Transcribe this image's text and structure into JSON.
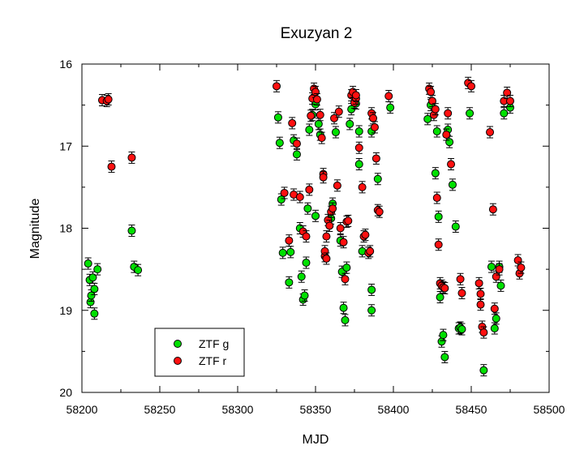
{
  "chart_data": {
    "type": "scatter",
    "title": "Exuzyan 2",
    "xlabel": "MJD",
    "ylabel": "Magnitude",
    "xlim": [
      58200,
      58500
    ],
    "ylim": [
      20,
      16
    ],
    "y_inverted": true,
    "x_ticks": [
      "58200",
      "58250",
      "58300",
      "58350",
      "58400",
      "58450",
      "58500"
    ],
    "y_ticks": [
      "16",
      "17",
      "18",
      "19",
      "20"
    ],
    "grid": false,
    "error_bars": true,
    "legend_position": "lower-left",
    "series": [
      {
        "name": "ZTF g",
        "color": "#00e000",
        "points": [
          [
            58204,
            18.43
          ],
          [
            58205,
            18.63
          ],
          [
            58205.5,
            18.9
          ],
          [
            58206,
            18.82
          ],
          [
            58207,
            18.6
          ],
          [
            58208,
            18.74
          ],
          [
            58208,
            19.04
          ],
          [
            58210,
            18.5
          ],
          [
            58232,
            18.03
          ],
          [
            58233.5,
            18.47
          ],
          [
            58236,
            18.51
          ],
          [
            58326,
            16.65
          ],
          [
            58327,
            16.96
          ],
          [
            58328,
            17.65
          ],
          [
            58329,
            18.3
          ],
          [
            58333,
            18.66
          ],
          [
            58334,
            18.29
          ],
          [
            58336,
            16.93
          ],
          [
            58338,
            17.1
          ],
          [
            58340,
            18.0
          ],
          [
            58341,
            18.59
          ],
          [
            58342,
            18.87
          ],
          [
            58343,
            18.82
          ],
          [
            58344,
            18.42
          ],
          [
            58345,
            17.76
          ],
          [
            58346,
            16.8
          ],
          [
            58348,
            16.62
          ],
          [
            58350,
            16.49
          ],
          [
            58350,
            17.85
          ],
          [
            58352,
            16.73
          ],
          [
            58353,
            16.86
          ],
          [
            58360,
            17.88
          ],
          [
            58361,
            17.7
          ],
          [
            58363,
            16.83
          ],
          [
            58366,
            18.15
          ],
          [
            58367,
            18.53
          ],
          [
            58368,
            18.97
          ],
          [
            58369,
            19.12
          ],
          [
            58370,
            18.48
          ],
          [
            58372,
            16.73
          ],
          [
            58373,
            16.55
          ],
          [
            58376,
            16.48
          ],
          [
            58378,
            17.22
          ],
          [
            58378,
            16.82
          ],
          [
            58380,
            18.28
          ],
          [
            58386,
            18.75
          ],
          [
            58386,
            19.0
          ],
          [
            58386,
            16.82
          ],
          [
            58390,
            17.4
          ],
          [
            58398,
            16.53
          ],
          [
            58422,
            16.67
          ],
          [
            58424,
            16.5
          ],
          [
            58427,
            17.33
          ],
          [
            58428,
            16.82
          ],
          [
            58429,
            17.86
          ],
          [
            58430,
            18.84
          ],
          [
            58431,
            19.38
          ],
          [
            58432,
            19.3
          ],
          [
            58433,
            19.57
          ],
          [
            58435,
            16.8
          ],
          [
            58436,
            16.95
          ],
          [
            58438,
            17.47
          ],
          [
            58440,
            17.98
          ],
          [
            58442,
            19.22
          ],
          [
            58443,
            19.21
          ],
          [
            58444,
            19.23
          ],
          [
            58449,
            16.6
          ],
          [
            58458,
            19.73
          ],
          [
            58463,
            18.47
          ],
          [
            58465,
            19.22
          ],
          [
            58466,
            19.1
          ],
          [
            58468,
            18.47
          ],
          [
            58469,
            18.7
          ],
          [
            58471,
            16.6
          ],
          [
            58475,
            16.53
          ]
        ]
      },
      {
        "name": "ZTF r",
        "color": "#ff1010",
        "points": [
          [
            58213,
            16.44
          ],
          [
            58216,
            16.45
          ],
          [
            58217,
            16.43
          ],
          [
            58219,
            17.25
          ],
          [
            58232,
            17.14
          ],
          [
            58325,
            16.27
          ],
          [
            58330,
            17.57
          ],
          [
            58333,
            18.15
          ],
          [
            58335,
            16.72
          ],
          [
            58336,
            17.59
          ],
          [
            58338,
            16.97
          ],
          [
            58340,
            17.62
          ],
          [
            58342,
            18.04
          ],
          [
            58344,
            18.1
          ],
          [
            58346,
            17.53
          ],
          [
            58347,
            16.63
          ],
          [
            58348,
            16.42
          ],
          [
            58349,
            16.3
          ],
          [
            58350,
            16.34
          ],
          [
            58351,
            16.43
          ],
          [
            58353,
            16.62
          ],
          [
            58354,
            16.9
          ],
          [
            58355,
            17.34
          ],
          [
            58355,
            17.38
          ],
          [
            58356,
            18.34
          ],
          [
            58356,
            18.28
          ],
          [
            58357,
            18.1
          ],
          [
            58357,
            18.37
          ],
          [
            58358,
            17.9
          ],
          [
            58359,
            17.97
          ],
          [
            58360,
            17.8
          ],
          [
            58361,
            17.76
          ],
          [
            58362,
            16.66
          ],
          [
            58364,
            17.48
          ],
          [
            58365,
            16.58
          ],
          [
            58366,
            18.0
          ],
          [
            58368,
            18.17
          ],
          [
            58369,
            18.62
          ],
          [
            58370,
            17.92
          ],
          [
            58371,
            17.91
          ],
          [
            58373,
            16.38
          ],
          [
            58374,
            16.34
          ],
          [
            58375,
            16.47
          ],
          [
            58376,
            16.42
          ],
          [
            58376,
            16.38
          ],
          [
            58378,
            17.02
          ],
          [
            58380,
            17.5
          ],
          [
            58381,
            18.1
          ],
          [
            58382,
            18.08
          ],
          [
            58384,
            18.3
          ],
          [
            58385,
            18.28
          ],
          [
            58386,
            16.6
          ],
          [
            58387,
            16.66
          ],
          [
            58388,
            16.77
          ],
          [
            58389,
            17.15
          ],
          [
            58390,
            17.78
          ],
          [
            58391,
            17.8
          ],
          [
            58397,
            16.39
          ],
          [
            58423,
            16.3
          ],
          [
            58424,
            16.34
          ],
          [
            58425,
            16.45
          ],
          [
            58426,
            16.62
          ],
          [
            58427,
            16.55
          ],
          [
            58428,
            17.63
          ],
          [
            58429,
            18.2
          ],
          [
            58430,
            18.67
          ],
          [
            58431,
            18.7
          ],
          [
            58432,
            18.72
          ],
          [
            58433,
            18.73
          ],
          [
            58434,
            16.86
          ],
          [
            58435,
            16.6
          ],
          [
            58437,
            17.22
          ],
          [
            58443,
            18.62
          ],
          [
            58444,
            18.79
          ],
          [
            58448,
            16.23
          ],
          [
            58450,
            16.27
          ],
          [
            58455,
            18.67
          ],
          [
            58456,
            18.93
          ],
          [
            58456,
            18.8
          ],
          [
            58457,
            19.2
          ],
          [
            58458,
            19.27
          ],
          [
            58462,
            16.83
          ],
          [
            58464,
            17.77
          ],
          [
            58465,
            18.98
          ],
          [
            58466,
            18.59
          ],
          [
            58468,
            18.5
          ],
          [
            58471,
            16.45
          ],
          [
            58473,
            16.35
          ],
          [
            58475,
            16.45
          ],
          [
            58480,
            18.39
          ],
          [
            58481,
            18.55
          ],
          [
            58482,
            18.48
          ]
        ]
      }
    ]
  }
}
